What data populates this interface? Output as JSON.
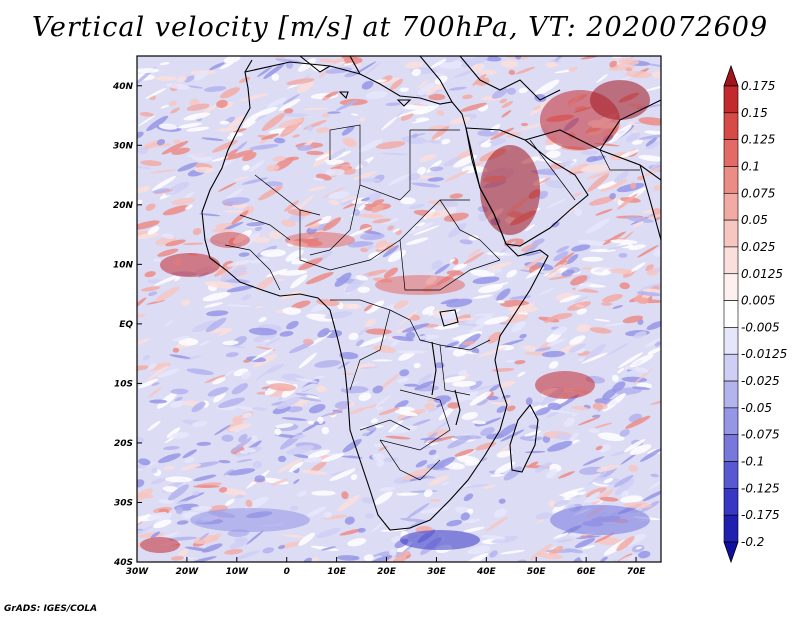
{
  "title": "Vertical velocity [m/s] at 700hPa, VT: 2020072609",
  "footer": "GrADS: IGES/COLA",
  "map": {
    "lon_range": [
      -30,
      75
    ],
    "lat_range": [
      -40,
      45
    ],
    "x_ticks": [
      {
        "lon": -30,
        "label": "30W"
      },
      {
        "lon": -20,
        "label": "20W"
      },
      {
        "lon": -10,
        "label": "10W"
      },
      {
        "lon": 0,
        "label": "0"
      },
      {
        "lon": 10,
        "label": "10E"
      },
      {
        "lon": 20,
        "label": "20E"
      },
      {
        "lon": 30,
        "label": "30E"
      },
      {
        "lon": 40,
        "label": "40E"
      },
      {
        "lon": 50,
        "label": "50E"
      },
      {
        "lon": 60,
        "label": "60E"
      },
      {
        "lon": 70,
        "label": "70E"
      }
    ],
    "y_ticks": [
      {
        "lat": 40,
        "label": "40N"
      },
      {
        "lat": 30,
        "label": "30N"
      },
      {
        "lat": 20,
        "label": "20N"
      },
      {
        "lat": 10,
        "label": "10N"
      },
      {
        "lat": 0,
        "label": "EQ"
      },
      {
        "lat": -10,
        "label": "10S"
      },
      {
        "lat": -20,
        "label": "20S"
      },
      {
        "lat": -30,
        "label": "30S"
      },
      {
        "lat": -40,
        "label": "40S"
      }
    ]
  },
  "colorbar": {
    "labels": [
      "0.175",
      "0.15",
      "0.125",
      "0.1",
      "0.075",
      "0.05",
      "0.025",
      "0.0125",
      "0.005",
      "-0.005",
      "-0.0125",
      "-0.025",
      "-0.05",
      "-0.075",
      "-0.1",
      "-0.125",
      "-0.175",
      "-0.2"
    ],
    "colors": [
      "#a1141c",
      "#c22a2e",
      "#d64a47",
      "#e36b66",
      "#ec8c86",
      "#f2aaa4",
      "#f7c6c1",
      "#fbdfdc",
      "#fdf0ee",
      "#ffffff",
      "#e6e6fb",
      "#cfcff5",
      "#b3b3ee",
      "#9696e6",
      "#7777dc",
      "#5858d1",
      "#3838c4",
      "#2020b0",
      "#1010a0"
    ]
  }
}
